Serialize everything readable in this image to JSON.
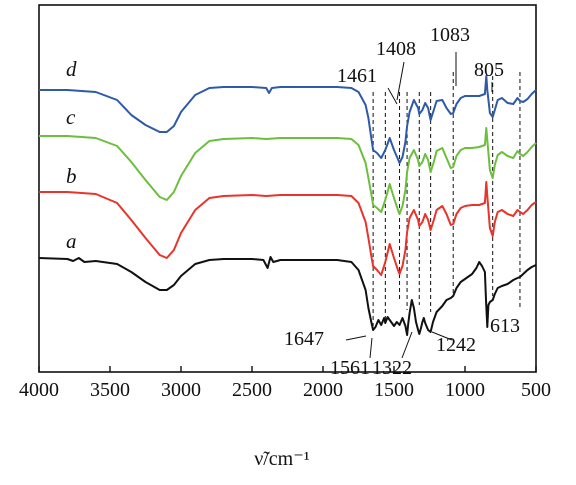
{
  "chart_data": {
    "type": "line",
    "xlabel": "ν̃/cm⁻¹",
    "xlim": [
      4000,
      500
    ],
    "x_reversed": true,
    "x_ticks": [
      4000,
      3500,
      3000,
      2500,
      2000,
      1500,
      1000,
      500
    ],
    "y_ticks": [],
    "grid": false,
    "series": [
      {
        "name": "d",
        "color": "#2e5aa8",
        "points": [
          [
            4000,
            90
          ],
          [
            3800,
            90
          ],
          [
            3600,
            92
          ],
          [
            3450,
            100
          ],
          [
            3350,
            115
          ],
          [
            3250,
            125
          ],
          [
            3150,
            132
          ],
          [
            3100,
            132
          ],
          [
            3050,
            126
          ],
          [
            3000,
            112
          ],
          [
            2900,
            95
          ],
          [
            2800,
            88
          ],
          [
            2700,
            87
          ],
          [
            2500,
            87
          ],
          [
            2400,
            88
          ],
          [
            2380,
            93
          ],
          [
            2360,
            88
          ],
          [
            2300,
            87
          ],
          [
            2000,
            87
          ],
          [
            1900,
            87
          ],
          [
            1800,
            88
          ],
          [
            1750,
            92
          ],
          [
            1700,
            105
          ],
          [
            1680,
            118
          ],
          [
            1660,
            138
          ],
          [
            1647,
            150
          ],
          [
            1620,
            153
          ],
          [
            1590,
            158
          ],
          [
            1561,
            150
          ],
          [
            1530,
            138
          ],
          [
            1500,
            150
          ],
          [
            1470,
            160
          ],
          [
            1461,
            163
          ],
          [
            1440,
            157
          ],
          [
            1420,
            142
          ],
          [
            1408,
            126
          ],
          [
            1390,
            112
          ],
          [
            1360,
            100
          ],
          [
            1330,
            108
          ],
          [
            1322,
            114
          ],
          [
            1300,
            110
          ],
          [
            1280,
            103
          ],
          [
            1260,
            108
          ],
          [
            1242,
            120
          ],
          [
            1220,
            110
          ],
          [
            1200,
            101
          ],
          [
            1160,
            100
          ],
          [
            1130,
            108
          ],
          [
            1100,
            114
          ],
          [
            1083,
            113
          ],
          [
            1060,
            104
          ],
          [
            1030,
            98
          ],
          [
            1000,
            96
          ],
          [
            950,
            96
          ],
          [
            900,
            96
          ],
          [
            860,
            94
          ],
          [
            850,
            76
          ],
          [
            843,
            90
          ],
          [
            825,
            113
          ],
          [
            805,
            117
          ],
          [
            790,
            110
          ],
          [
            770,
            100
          ],
          [
            740,
            98
          ],
          [
            700,
            103
          ],
          [
            660,
            104
          ],
          [
            630,
            98
          ],
          [
            613,
            101
          ],
          [
            590,
            102
          ],
          [
            560,
            99
          ],
          [
            530,
            94
          ],
          [
            500,
            90
          ]
        ]
      },
      {
        "name": "c",
        "color": "#6cbf3d",
        "points": [
          [
            4000,
            136
          ],
          [
            3800,
            136
          ],
          [
            3600,
            138
          ],
          [
            3450,
            146
          ],
          [
            3350,
            162
          ],
          [
            3250,
            180
          ],
          [
            3150,
            197
          ],
          [
            3100,
            200
          ],
          [
            3050,
            192
          ],
          [
            3000,
            176
          ],
          [
            2900,
            153
          ],
          [
            2800,
            141
          ],
          [
            2700,
            139
          ],
          [
            2500,
            138
          ],
          [
            2400,
            139
          ],
          [
            2300,
            138
          ],
          [
            2000,
            138
          ],
          [
            1900,
            138
          ],
          [
            1800,
            139
          ],
          [
            1750,
            145
          ],
          [
            1700,
            163
          ],
          [
            1680,
            178
          ],
          [
            1660,
            194
          ],
          [
            1647,
            205
          ],
          [
            1620,
            208
          ],
          [
            1590,
            212
          ],
          [
            1561,
            200
          ],
          [
            1530,
            184
          ],
          [
            1500,
            198
          ],
          [
            1470,
            211
          ],
          [
            1461,
            214
          ],
          [
            1440,
            206
          ],
          [
            1420,
            190
          ],
          [
            1408,
            172
          ],
          [
            1390,
            158
          ],
          [
            1360,
            150
          ],
          [
            1330,
            160
          ],
          [
            1322,
            166
          ],
          [
            1300,
            162
          ],
          [
            1280,
            154
          ],
          [
            1260,
            160
          ],
          [
            1242,
            172
          ],
          [
            1220,
            162
          ],
          [
            1200,
            151
          ],
          [
            1160,
            148
          ],
          [
            1130,
            158
          ],
          [
            1100,
            168
          ],
          [
            1083,
            167
          ],
          [
            1060,
            156
          ],
          [
            1030,
            150
          ],
          [
            1000,
            148
          ],
          [
            950,
            148
          ],
          [
            900,
            147
          ],
          [
            860,
            145
          ],
          [
            850,
            128
          ],
          [
            843,
            140
          ],
          [
            825,
            170
          ],
          [
            805,
            178
          ],
          [
            790,
            165
          ],
          [
            770,
            155
          ],
          [
            740,
            152
          ],
          [
            700,
            156
          ],
          [
            660,
            158
          ],
          [
            630,
            151
          ],
          [
            613,
            154
          ],
          [
            590,
            156
          ],
          [
            560,
            152
          ],
          [
            530,
            147
          ],
          [
            500,
            143
          ]
        ]
      },
      {
        "name": "b",
        "color": "#e8342a",
        "points": [
          [
            4000,
            192
          ],
          [
            3800,
            192
          ],
          [
            3600,
            194
          ],
          [
            3450,
            203
          ],
          [
            3350,
            220
          ],
          [
            3250,
            238
          ],
          [
            3150,
            255
          ],
          [
            3100,
            258
          ],
          [
            3050,
            250
          ],
          [
            3000,
            233
          ],
          [
            2900,
            210
          ],
          [
            2800,
            198
          ],
          [
            2700,
            196
          ],
          [
            2500,
            195
          ],
          [
            2400,
            196
          ],
          [
            2300,
            195
          ],
          [
            2000,
            195
          ],
          [
            1900,
            195
          ],
          [
            1800,
            196
          ],
          [
            1750,
            203
          ],
          [
            1700,
            222
          ],
          [
            1680,
            238
          ],
          [
            1660,
            256
          ],
          [
            1647,
            266
          ],
          [
            1620,
            270
          ],
          [
            1590,
            275
          ],
          [
            1561,
            262
          ],
          [
            1530,
            244
          ],
          [
            1500,
            258
          ],
          [
            1470,
            271
          ],
          [
            1461,
            274
          ],
          [
            1440,
            266
          ],
          [
            1420,
            250
          ],
          [
            1408,
            232
          ],
          [
            1390,
            218
          ],
          [
            1360,
            210
          ],
          [
            1330,
            220
          ],
          [
            1322,
            226
          ],
          [
            1300,
            222
          ],
          [
            1280,
            214
          ],
          [
            1260,
            220
          ],
          [
            1242,
            230
          ],
          [
            1220,
            220
          ],
          [
            1200,
            210
          ],
          [
            1160,
            206
          ],
          [
            1130,
            214
          ],
          [
            1100,
            225
          ],
          [
            1083,
            224
          ],
          [
            1060,
            214
          ],
          [
            1030,
            208
          ],
          [
            1000,
            206
          ],
          [
            950,
            205
          ],
          [
            900,
            205
          ],
          [
            860,
            203
          ],
          [
            850,
            182
          ],
          [
            843,
            196
          ],
          [
            825,
            228
          ],
          [
            805,
            236
          ],
          [
            790,
            222
          ],
          [
            770,
            212
          ],
          [
            740,
            210
          ],
          [
            700,
            214
          ],
          [
            660,
            216
          ],
          [
            630,
            210
          ],
          [
            613,
            212
          ],
          [
            590,
            214
          ],
          [
            560,
            210
          ],
          [
            530,
            205
          ],
          [
            500,
            202
          ]
        ]
      },
      {
        "name": "a",
        "color": "#111111",
        "points": [
          [
            4000,
            258
          ],
          [
            3800,
            259
          ],
          [
            3760,
            261
          ],
          [
            3720,
            258
          ],
          [
            3680,
            262
          ],
          [
            3600,
            261
          ],
          [
            3450,
            264
          ],
          [
            3350,
            272
          ],
          [
            3250,
            282
          ],
          [
            3150,
            290
          ],
          [
            3100,
            290
          ],
          [
            3050,
            285
          ],
          [
            3000,
            276
          ],
          [
            2900,
            264
          ],
          [
            2800,
            260
          ],
          [
            2700,
            259
          ],
          [
            2500,
            259
          ],
          [
            2420,
            260
          ],
          [
            2390,
            268
          ],
          [
            2370,
            257
          ],
          [
            2350,
            262
          ],
          [
            2300,
            260
          ],
          [
            2000,
            260
          ],
          [
            1900,
            260
          ],
          [
            1800,
            262
          ],
          [
            1750,
            270
          ],
          [
            1700,
            290
          ],
          [
            1680,
            308
          ],
          [
            1660,
            322
          ],
          [
            1647,
            330
          ],
          [
            1630,
            327
          ],
          [
            1610,
            320
          ],
          [
            1590,
            325
          ],
          [
            1570,
            318
          ],
          [
            1561,
            323
          ],
          [
            1545,
            317
          ],
          [
            1530,
            320
          ],
          [
            1500,
            326
          ],
          [
            1480,
            322
          ],
          [
            1461,
            325
          ],
          [
            1440,
            318
          ],
          [
            1420,
            326
          ],
          [
            1408,
            335
          ],
          [
            1400,
            324
          ],
          [
            1390,
            313
          ],
          [
            1375,
            300
          ],
          [
            1360,
            308
          ],
          [
            1345,
            322
          ],
          [
            1330,
            330
          ],
          [
            1322,
            334
          ],
          [
            1310,
            328
          ],
          [
            1300,
            322
          ],
          [
            1290,
            318
          ],
          [
            1280,
            323
          ],
          [
            1260,
            330
          ],
          [
            1242,
            332
          ],
          [
            1225,
            322
          ],
          [
            1200,
            312
          ],
          [
            1160,
            306
          ],
          [
            1130,
            300
          ],
          [
            1100,
            298
          ],
          [
            1083,
            296
          ],
          [
            1060,
            288
          ],
          [
            1030,
            282
          ],
          [
            1000,
            279
          ],
          [
            950,
            274
          ],
          [
            920,
            268
          ],
          [
            900,
            262
          ],
          [
            880,
            266
          ],
          [
            860,
            272
          ],
          [
            852,
            300
          ],
          [
            843,
            327
          ],
          [
            835,
            305
          ],
          [
            825,
            302
          ],
          [
            805,
            300
          ],
          [
            790,
            294
          ],
          [
            770,
            288
          ],
          [
            740,
            286
          ],
          [
            700,
            284
          ],
          [
            660,
            280
          ],
          [
            630,
            278
          ],
          [
            613,
            277
          ],
          [
            590,
            274
          ],
          [
            560,
            270
          ],
          [
            530,
            267
          ],
          [
            500,
            265
          ]
        ]
      }
    ],
    "annotations": {
      "vlines": [
        1647,
        1561,
        1461,
        1408,
        1322,
        1242,
        1083,
        805,
        613
      ],
      "labels": [
        {
          "text": "1461",
          "x": 1461
        },
        {
          "text": "1408",
          "x": 1408
        },
        {
          "text": "1083",
          "x": 1083
        },
        {
          "text": "805",
          "x": 805
        },
        {
          "text": "1647",
          "x": 1647
        },
        {
          "text": "1561",
          "x": 1561
        },
        {
          "text": "1322",
          "x": 1322
        },
        {
          "text": "1242",
          "x": 1242
        },
        {
          "text": "613",
          "x": 613
        }
      ]
    }
  }
}
